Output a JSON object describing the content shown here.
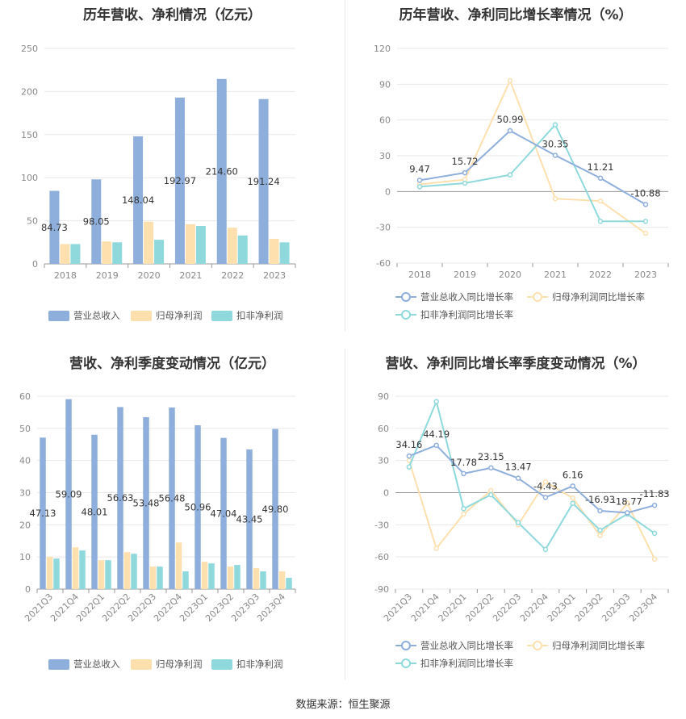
{
  "colors": {
    "revenue": "#8eaedc",
    "parent_profit": "#fde0ae",
    "deducted_profit": "#8fd9dc",
    "grid": "#e8e8e8",
    "axis": "#999999"
  },
  "source_label": "数据来源：恒生聚源",
  "chart_data": [
    {
      "type": "bar",
      "title": "历年营收、净利情况（亿元）",
      "categories": [
        "2018",
        "2019",
        "2020",
        "2021",
        "2022",
        "2023"
      ],
      "ylim": [
        0,
        250
      ],
      "yticks": [
        "0",
        "50",
        "100",
        "150",
        "200",
        "250"
      ],
      "series": [
        {
          "name": "营业总收入",
          "color_key": "revenue",
          "values": [
            84.73,
            98.05,
            148.04,
            192.97,
            214.6,
            191.24
          ],
          "labels": [
            "84.73",
            "98.05",
            "148.04",
            "192.97",
            "214.60",
            "191.24"
          ]
        },
        {
          "name": "归母净利润",
          "color_key": "parent_profit",
          "values": [
            23,
            26,
            49,
            46,
            42,
            29
          ]
        },
        {
          "name": "扣非净利润",
          "color_key": "deducted_profit",
          "values": [
            23,
            25,
            28,
            44,
            33,
            25
          ]
        }
      ],
      "legend": "bottom"
    },
    {
      "type": "line",
      "title": "历年营收、净利同比增长率情况（%）",
      "categories": [
        "2018",
        "2019",
        "2020",
        "2021",
        "2022",
        "2023"
      ],
      "ylim": [
        -60,
        120
      ],
      "yticks": [
        "-60",
        "-30",
        "0",
        "30",
        "60",
        "90",
        "120"
      ],
      "series": [
        {
          "name": "营业总收入同比增长率",
          "color_key": "revenue",
          "values": [
            9.47,
            15.72,
            50.99,
            30.35,
            11.21,
            -10.88
          ],
          "labels": [
            "9.47",
            "15.72",
            "50.99",
            "30.35",
            "11.21",
            "-10.88"
          ]
        },
        {
          "name": "归母净利润同比增长率",
          "color_key": "parent_profit",
          "values": [
            6,
            10,
            93,
            -6,
            -8,
            -35
          ]
        },
        {
          "name": "扣非净利润同比增长率",
          "color_key": "deducted_profit",
          "values": [
            4,
            7,
            14,
            56,
            -25,
            -25
          ]
        }
      ],
      "legend": "bottom"
    },
    {
      "type": "bar",
      "title": "营收、净利季度变动情况（亿元）",
      "categories": [
        "2021Q3",
        "2021Q4",
        "2022Q1",
        "2022Q2",
        "2022Q3",
        "2022Q4",
        "2023Q1",
        "2023Q2",
        "2023Q3",
        "2023Q4"
      ],
      "ylim": [
        0,
        60
      ],
      "yticks": [
        "0",
        "10",
        "20",
        "30",
        "40",
        "50",
        "60"
      ],
      "series": [
        {
          "name": "营业总收入",
          "color_key": "revenue",
          "values": [
            47.13,
            59.09,
            48.01,
            56.63,
            53.48,
            56.48,
            50.96,
            47.04,
            43.45,
            49.8
          ],
          "labels": [
            "47.13",
            "59.09",
            "48.01",
            "56.63",
            "53.48",
            "56.48",
            "50.96",
            "47.04",
            "43.45",
            "49.80"
          ]
        },
        {
          "name": "归母净利润",
          "color_key": "parent_profit",
          "values": [
            10,
            13,
            9,
            11.5,
            7,
            14.5,
            8.5,
            7,
            6.5,
            5.5
          ]
        },
        {
          "name": "扣非净利润",
          "color_key": "deducted_profit",
          "values": [
            9.5,
            12,
            9,
            11,
            7,
            5.5,
            8,
            7.5,
            5.5,
            3.5
          ]
        }
      ],
      "legend": "bottom"
    },
    {
      "type": "line",
      "title": "营收、净利同比增长率季度变动情况（%）",
      "categories": [
        "2021Q3",
        "2021Q4",
        "2022Q1",
        "2022Q2",
        "2022Q3",
        "2022Q4",
        "2023Q1",
        "2023Q2",
        "2023Q3",
        "2023Q4"
      ],
      "ylim": [
        -90,
        90
      ],
      "yticks": [
        "-90",
        "-60",
        "-30",
        "0",
        "30",
        "60",
        "90"
      ],
      "series": [
        {
          "name": "营业总收入同比增长率",
          "color_key": "revenue",
          "values": [
            34.16,
            44.19,
            17.78,
            23.15,
            13.47,
            -4.43,
            6.16,
            -16.93,
            -18.77,
            -11.83
          ],
          "labels": [
            "34.16",
            "44.19",
            "17.78",
            "23.15",
            "13.47",
            "-4.43",
            "6.16",
            "-16.93",
            "-18.77",
            "-11.83"
          ]
        },
        {
          "name": "归母净利润同比增长率",
          "color_key": "parent_profit",
          "values": [
            30,
            -52,
            -20,
            2,
            -30,
            10,
            -5,
            -40,
            -10,
            -62
          ]
        },
        {
          "name": "扣非净利润同比增长率",
          "color_key": "deducted_profit",
          "values": [
            24,
            85,
            -15,
            -2,
            -28,
            -53,
            -10,
            -35,
            -20,
            -38
          ]
        }
      ],
      "legend": "bottom"
    }
  ]
}
